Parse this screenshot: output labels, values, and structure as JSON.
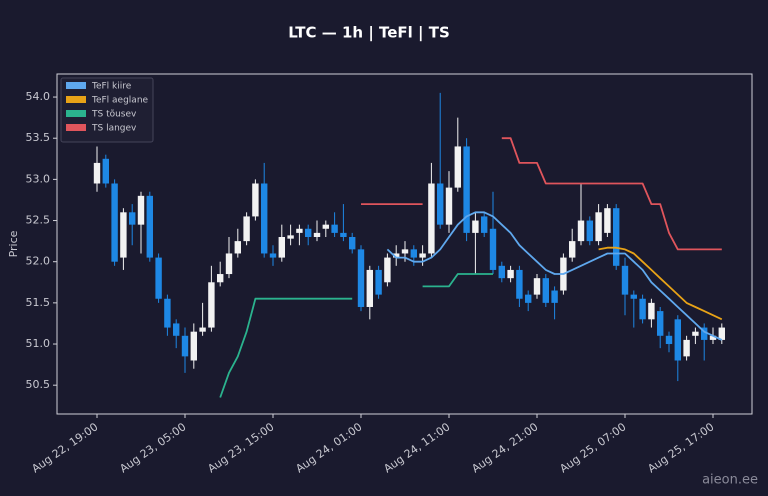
{
  "chart_data": {
    "type": "candlestick",
    "title": "LTC — 1h  |  TeFl  |  TS",
    "y_label": "Price",
    "watermark": "aieon.ee",
    "up_color": "#f2f2f2",
    "down_color": "#1e88e5",
    "categories": [
      "Aug 22, 19:00",
      null,
      null,
      null,
      null,
      null,
      null,
      null,
      null,
      null,
      "Aug 23, 05:00",
      null,
      null,
      null,
      null,
      null,
      null,
      null,
      null,
      null,
      "Aug 23, 15:00",
      null,
      null,
      null,
      null,
      null,
      null,
      null,
      null,
      null,
      "Aug 24, 01:00",
      null,
      null,
      null,
      null,
      null,
      null,
      null,
      null,
      null,
      "Aug 24, 11:00",
      null,
      null,
      null,
      null,
      null,
      null,
      null,
      null,
      null,
      "Aug 24, 21:00",
      null,
      null,
      null,
      null,
      null,
      null,
      null,
      null,
      null,
      "Aug 25, 07:00",
      null,
      null,
      null,
      null,
      null,
      null,
      null,
      null,
      null,
      "Aug 25, 17:00",
      null
    ],
    "open": [
      52.95,
      53.25,
      52.95,
      52.05,
      52.6,
      52.45,
      52.8,
      52.05,
      51.55,
      51.25,
      51.1,
      50.8,
      51.15,
      51.2,
      51.75,
      51.85,
      52.1,
      52.25,
      52.55,
      52.95,
      52.1,
      52.05,
      52.28,
      52.35,
      52.4,
      52.3,
      52.4,
      52.45,
      52.35,
      52.3,
      52.15,
      51.45,
      51.9,
      51.75,
      52.05,
      52.1,
      52.15,
      52.05,
      52.1,
      52.95,
      52.45,
      52.9,
      53.4,
      52.35,
      52.55,
      52.4,
      51.95,
      51.8,
      51.9,
      51.6,
      51.6,
      51.8,
      51.65,
      51.65,
      52.05,
      52.25,
      52.5,
      52.25,
      52.35,
      52.65,
      51.95,
      51.6,
      51.55,
      51.3,
      51.4,
      51.1,
      51.3,
      50.85,
      51.1,
      51.2,
      51.05,
      51.05
    ],
    "high": [
      53.4,
      53.3,
      53.0,
      52.65,
      52.7,
      52.85,
      52.85,
      52.1,
      51.6,
      51.3,
      51.2,
      51.25,
      51.5,
      51.95,
      52.0,
      52.3,
      52.4,
      52.6,
      53.0,
      53.2,
      52.2,
      52.45,
      52.45,
      52.45,
      52.45,
      52.5,
      52.5,
      52.6,
      52.7,
      52.35,
      52.2,
      51.95,
      51.95,
      52.1,
      52.2,
      52.25,
      52.2,
      52.2,
      53.2,
      54.05,
      53.1,
      53.75,
      53.5,
      52.6,
      52.6,
      52.85,
      52.0,
      51.95,
      51.95,
      51.65,
      51.85,
      51.85,
      51.7,
      52.1,
      52.4,
      52.95,
      52.55,
      52.7,
      52.7,
      52.7,
      52.05,
      51.65,
      51.6,
      51.55,
      51.45,
      51.15,
      51.35,
      51.1,
      51.2,
      51.25,
      51.2,
      51.25
    ],
    "low": [
      52.85,
      52.9,
      51.95,
      51.9,
      52.2,
      52.1,
      52.0,
      51.5,
      51.1,
      50.95,
      50.65,
      50.7,
      51.1,
      51.15,
      51.7,
      51.8,
      52.05,
      52.2,
      52.5,
      52.05,
      51.95,
      52.0,
      52.2,
      52.2,
      52.2,
      52.25,
      52.3,
      52.3,
      52.25,
      52.1,
      51.4,
      51.3,
      51.55,
      51.7,
      51.95,
      52.0,
      51.95,
      51.95,
      52.05,
      52.4,
      52.35,
      52.85,
      52.25,
      51.85,
      52.3,
      51.85,
      51.75,
      51.75,
      51.45,
      51.4,
      51.55,
      51.45,
      51.3,
      51.6,
      52.0,
      52.2,
      52.2,
      52.2,
      52.3,
      51.9,
      51.35,
      51.2,
      51.25,
      51.2,
      50.95,
      50.9,
      50.55,
      50.8,
      51.0,
      50.8,
      51.0,
      51.0
    ],
    "close": [
      53.2,
      52.95,
      52.0,
      52.6,
      52.45,
      52.8,
      52.05,
      51.55,
      51.2,
      51.1,
      50.85,
      51.15,
      51.2,
      51.75,
      51.85,
      52.1,
      52.25,
      52.55,
      52.95,
      52.1,
      52.05,
      52.3,
      52.32,
      52.4,
      52.3,
      52.35,
      52.45,
      52.35,
      52.3,
      52.15,
      51.45,
      51.9,
      51.6,
      52.05,
      52.1,
      52.15,
      52.05,
      52.1,
      52.95,
      52.45,
      52.9,
      53.4,
      52.35,
      52.5,
      52.35,
      51.9,
      51.8,
      51.9,
      51.55,
      51.5,
      51.8,
      51.5,
      51.5,
      52.05,
      52.25,
      52.5,
      52.25,
      52.6,
      52.65,
      51.95,
      51.6,
      51.55,
      51.3,
      51.5,
      51.1,
      51.0,
      50.8,
      51.05,
      51.15,
      51.05,
      51.1,
      51.2
    ],
    "series": [
      {
        "name": "TeFl kiire",
        "color": "#5fa8ee",
        "values": [
          null,
          null,
          null,
          null,
          null,
          null,
          null,
          null,
          null,
          null,
          null,
          null,
          null,
          null,
          null,
          null,
          null,
          null,
          null,
          null,
          null,
          null,
          null,
          null,
          null,
          null,
          null,
          null,
          null,
          null,
          null,
          null,
          null,
          52.15,
          52.05,
          52.05,
          52.0,
          52.0,
          52.05,
          52.15,
          52.3,
          52.45,
          52.55,
          52.6,
          52.6,
          52.55,
          52.45,
          52.35,
          52.2,
          52.1,
          52.0,
          51.9,
          51.85,
          51.85,
          51.9,
          51.95,
          52.0,
          52.05,
          52.1,
          52.1,
          52.1,
          52.0,
          51.9,
          51.75,
          51.65,
          51.55,
          51.45,
          51.35,
          51.25,
          51.15,
          51.1,
          51.05
        ]
      },
      {
        "name": "TeFl aeglane",
        "color": "#e8a317",
        "values": [
          null,
          null,
          null,
          null,
          null,
          null,
          null,
          null,
          null,
          null,
          null,
          null,
          null,
          null,
          null,
          null,
          null,
          null,
          null,
          null,
          null,
          null,
          null,
          null,
          null,
          null,
          null,
          null,
          null,
          null,
          null,
          null,
          null,
          null,
          null,
          null,
          null,
          null,
          null,
          null,
          null,
          null,
          null,
          null,
          null,
          null,
          null,
          null,
          null,
          null,
          null,
          null,
          null,
          null,
          null,
          null,
          null,
          52.15,
          52.17,
          52.17,
          52.15,
          52.1,
          52.0,
          51.9,
          51.8,
          51.7,
          51.6,
          51.5,
          51.45,
          51.4,
          51.35,
          51.3
        ]
      },
      {
        "name": "TS tõusev",
        "color": "#2bb38e",
        "values": [
          null,
          null,
          null,
          null,
          null,
          null,
          null,
          null,
          null,
          null,
          null,
          null,
          null,
          null,
          50.35,
          50.65,
          50.85,
          51.15,
          51.55,
          51.55,
          51.55,
          51.55,
          51.55,
          51.55,
          51.55,
          51.55,
          51.55,
          51.55,
          51.55,
          51.55,
          null,
          null,
          null,
          null,
          null,
          null,
          null,
          51.7,
          51.7,
          51.7,
          51.7,
          51.85,
          51.85,
          51.85,
          51.85,
          51.85,
          null,
          null,
          null,
          null,
          null,
          null,
          null,
          null,
          null,
          null,
          null,
          null,
          null,
          null,
          null,
          null,
          null,
          null,
          null,
          null,
          null,
          null,
          null,
          null,
          null,
          null
        ]
      },
      {
        "name": "TS langev",
        "color": "#e0555c",
        "values": [
          null,
          null,
          null,
          null,
          null,
          null,
          null,
          null,
          null,
          null,
          null,
          null,
          null,
          null,
          null,
          null,
          null,
          null,
          null,
          null,
          null,
          null,
          null,
          null,
          null,
          null,
          null,
          null,
          null,
          null,
          52.7,
          52.7,
          52.7,
          52.7,
          52.7,
          52.7,
          52.7,
          52.7,
          null,
          null,
          null,
          null,
          null,
          null,
          null,
          null,
          53.5,
          53.5,
          53.2,
          53.2,
          53.2,
          52.95,
          52.95,
          52.95,
          52.95,
          52.95,
          52.95,
          52.95,
          52.95,
          52.95,
          52.95,
          52.95,
          52.95,
          52.7,
          52.7,
          52.35,
          52.15,
          52.15,
          52.15,
          52.15,
          52.15,
          52.15
        ]
      }
    ],
    "ylim": [
      50.15,
      54.28
    ],
    "yticks": [
      50.5,
      {
        "value": 51,
        "label": "51.0"
      },
      51.5,
      {
        "value": 52,
        "label": "52.0"
      },
      52.5,
      {
        "value": 53,
        "label": "53.0"
      },
      53.5,
      {
        "value": 54,
        "label": "54.0"
      }
    ],
    "legend": "upper left"
  }
}
